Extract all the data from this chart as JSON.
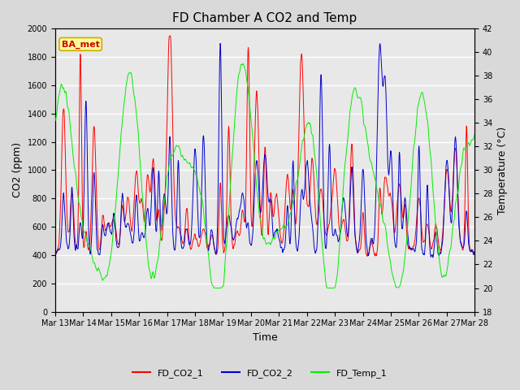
{
  "title": "FD Chamber A CO2 and Temp",
  "xlabel": "Time",
  "ylabel_left": "CO2 (ppm)",
  "ylabel_right": "Temperature (°C)",
  "ylim_left": [
    0,
    2000
  ],
  "ylim_right": [
    18,
    42
  ],
  "yticks_left": [
    0,
    200,
    400,
    600,
    800,
    1000,
    1200,
    1400,
    1600,
    1800,
    2000
  ],
  "yticks_right": [
    18,
    20,
    22,
    24,
    26,
    28,
    30,
    32,
    34,
    36,
    38,
    40,
    42
  ],
  "x_tick_labels": [
    "Mar 13",
    "Mar 14",
    "Mar 15",
    "Mar 16",
    "Mar 17",
    "Mar 18",
    "Mar 19",
    "Mar 20",
    "Mar 21",
    "Mar 22",
    "Mar 23",
    "Mar 24",
    "Mar 25",
    "Mar 26",
    "Mar 27",
    "Mar 28"
  ],
  "legend_labels": [
    "FD_CO2_1",
    "FD_CO2_2",
    "FD_Temp_1"
  ],
  "line_colors": [
    "#ff0000",
    "#0000cc",
    "#00ee00"
  ],
  "annotation_text": "BA_met",
  "annotation_box_facecolor": "#ffff99",
  "annotation_box_edgecolor": "#ccaa00",
  "annotation_text_color": "#cc0000",
  "background_color": "#d9d9d9",
  "plot_bg_color": "#e8e8e8",
  "grid_color": "#ffffff",
  "title_fontsize": 11,
  "tick_fontsize": 7,
  "label_fontsize": 9,
  "legend_fontsize": 8,
  "n_points": 1500
}
